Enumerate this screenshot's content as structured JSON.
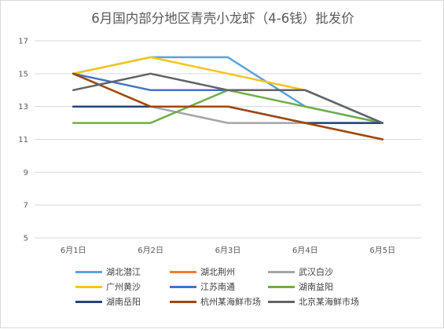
{
  "chart_data": {
    "type": "line",
    "title": "6月国内部分地区青壳小龙虾（4-6钱）批发价",
    "xlabel": "",
    "ylabel": "",
    "categories": [
      "6月1日",
      "6月2日",
      "6月3日",
      "6月4日",
      "6月5日"
    ],
    "y_ticks": [
      "5",
      "7",
      "9",
      "11",
      "13",
      "15",
      "17"
    ],
    "ylim": [
      5,
      17
    ],
    "grid": "horizontal",
    "legend_position": "bottom",
    "series": [
      {
        "name": "湖北潜江",
        "color": "#5ba3d9",
        "values": [
          15,
          16,
          16,
          13,
          12
        ]
      },
      {
        "name": "湖北荆州",
        "color": "#ed7d31",
        "values": [
          15,
          13,
          13,
          12,
          11
        ]
      },
      {
        "name": "武汉白沙",
        "color": "#a5a5a5",
        "values": [
          13,
          13,
          12,
          12,
          12
        ]
      },
      {
        "name": "广州黄沙",
        "color": "#f5c518",
        "values": [
          15,
          16,
          15,
          14,
          null
        ]
      },
      {
        "name": "江苏南通",
        "color": "#4472c4",
        "values": [
          15,
          14,
          14,
          14,
          12
        ]
      },
      {
        "name": "湖南益阳",
        "color": "#70ad47",
        "values": [
          12,
          12,
          14,
          13,
          12
        ]
      },
      {
        "name": "湖南岳阳",
        "color": "#264478",
        "values": [
          13,
          13,
          13,
          12,
          12
        ]
      },
      {
        "name": "杭州某海鲜市场",
        "color": "#9e480e",
        "values": [
          15,
          13,
          13,
          12,
          11
        ]
      },
      {
        "name": "北京某海鲜市场",
        "color": "#636363",
        "values": [
          14,
          15,
          14,
          14,
          12
        ]
      }
    ]
  }
}
